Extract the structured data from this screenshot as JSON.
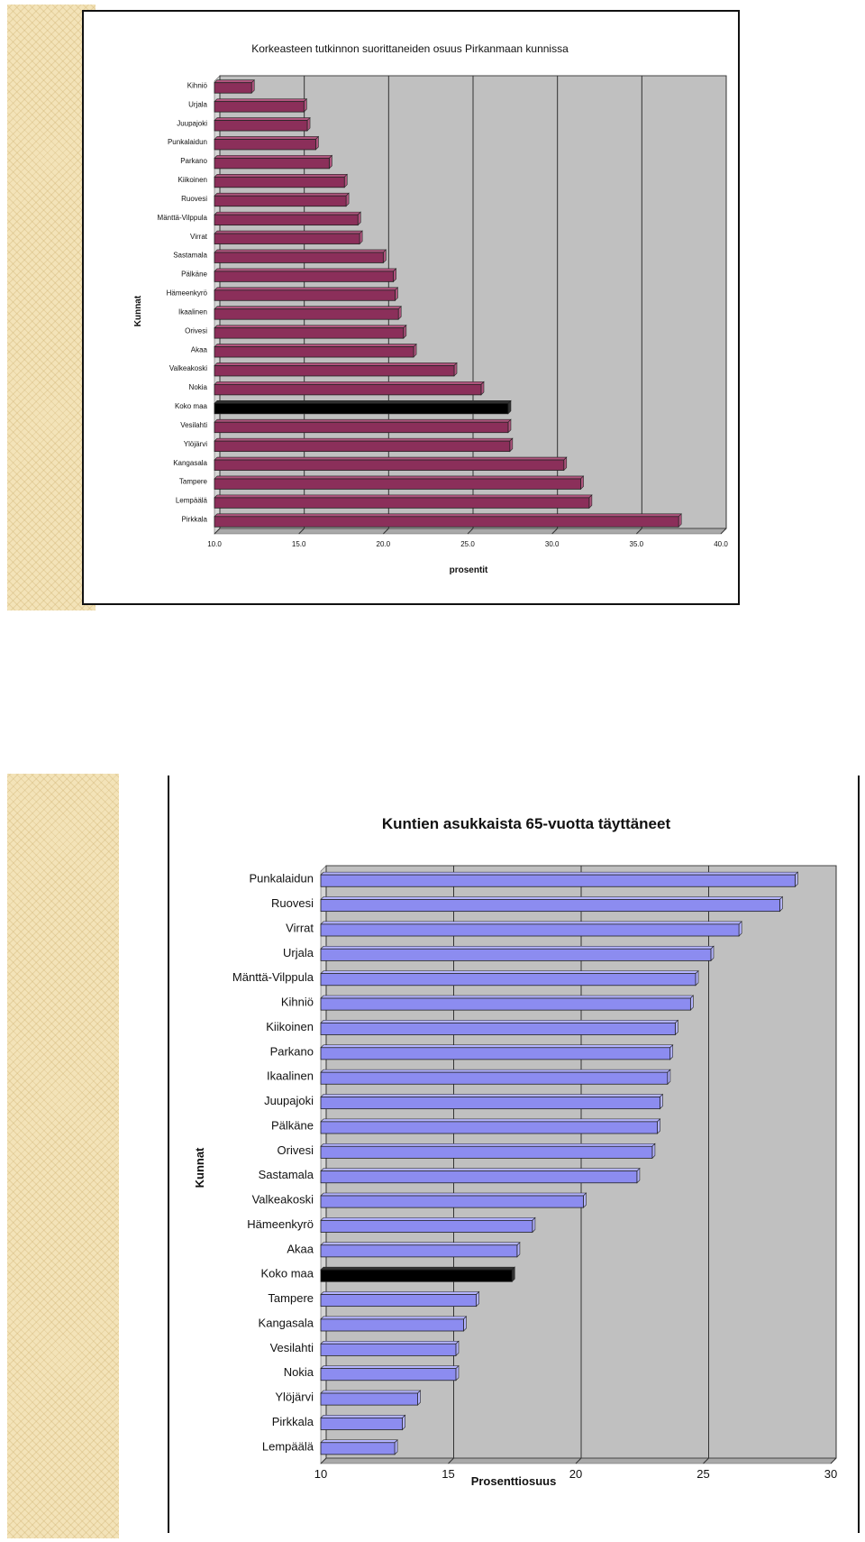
{
  "chart_data": [
    {
      "type": "bar",
      "orientation": "horizontal",
      "title": "Korkeasteen tutkinnon suorittaneiden osuus Pirkanmaan kunnissa",
      "xlabel": "prosentit",
      "ylabel": "Kunnat",
      "xlim": [
        10,
        40
      ],
      "xticks": [
        "10.0",
        "15.0",
        "20.0",
        "25.0",
        "30.0",
        "35.0",
        "40.0"
      ],
      "grid": true,
      "legend": "none",
      "colors": {
        "bar": "#8b2f5a",
        "bar_top": "#b0557e",
        "highlight": "#000000"
      },
      "highlight_category": "Koko maa",
      "categories": [
        "Kihniö",
        "Urjala",
        "Juupajoki",
        "Punkalaidun",
        "Parkano",
        "Kiikoinen",
        "Ruovesi",
        "Mänttä-Vilppula",
        "Virrat",
        "Sastamala",
        "Pälkäne",
        "Hämeenkyrö",
        "Ikaalinen",
        "Orivesi",
        "Akaa",
        "Valkeakoski",
        "Nokia",
        "Koko maa",
        "Vesilahti",
        "Ylöjärvi",
        "Kangasala",
        "Tampere",
        "Lempäälä",
        "Pirkkala"
      ],
      "values": [
        12.2,
        15.3,
        15.5,
        16.0,
        16.8,
        17.7,
        17.8,
        18.5,
        18.6,
        20.0,
        20.6,
        20.7,
        20.9,
        21.2,
        21.8,
        24.2,
        25.8,
        27.4,
        27.4,
        27.5,
        30.7,
        31.7,
        32.2,
        37.5
      ]
    },
    {
      "type": "bar",
      "orientation": "horizontal",
      "title": "Kuntien asukkaista 65-vuotta täyttäneet",
      "xlabel": "Prosenttiosuus",
      "ylabel": "Kunnat",
      "xlim": [
        10,
        30
      ],
      "xticks": [
        "10",
        "15",
        "20",
        "25",
        "30"
      ],
      "grid": true,
      "legend": "none",
      "colors": {
        "bar": "#8c8cf0",
        "bar_top": "#b4b4ff",
        "highlight": "#000000"
      },
      "highlight_category": "Koko maa",
      "categories": [
        "Punkalaidun",
        "Ruovesi",
        "Virrat",
        "Urjala",
        "Mänttä-Vilppula",
        "Kihniö",
        "Kiikoinen",
        "Parkano",
        "Ikaalinen",
        "Juupajoki",
        "Pälkäne",
        "Orivesi",
        "Sastamala",
        "Valkeakoski",
        "Hämeenkyrö",
        "Akaa",
        "Koko maa",
        "Tampere",
        "Kangasala",
        "Vesilahti",
        "Nokia",
        "Ylöjärvi",
        "Pirkkala",
        "Lempäälä"
      ],
      "values": [
        28.6,
        28.0,
        26.4,
        25.3,
        24.7,
        24.5,
        23.9,
        23.7,
        23.6,
        23.3,
        23.2,
        23.0,
        22.4,
        20.3,
        18.3,
        17.7,
        17.5,
        16.1,
        15.6,
        15.3,
        15.3,
        13.8,
        13.2,
        12.9
      ]
    }
  ]
}
